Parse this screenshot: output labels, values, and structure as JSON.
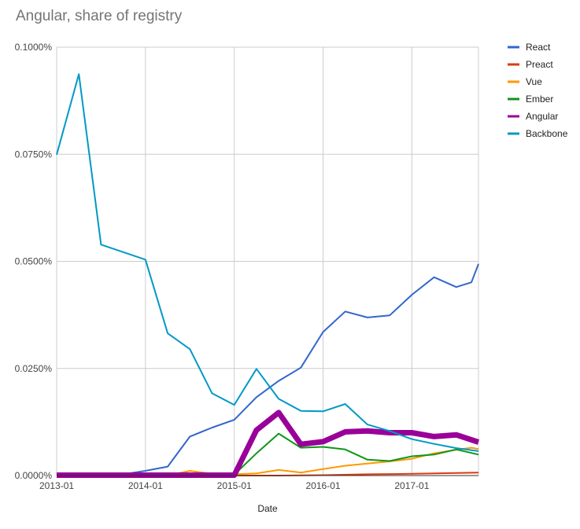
{
  "chart_data": {
    "type": "line",
    "title": "Angular, share of registry",
    "xlabel": "Date",
    "ylabel": "",
    "ylim": [
      0,
      0.1
    ],
    "xlim": [
      2013.0,
      2017.75
    ],
    "grid": true,
    "legend_position": "right",
    "y_ticks": [
      {
        "value": 0,
        "label": "0.0000%"
      },
      {
        "value": 0.025,
        "label": "0.0250%"
      },
      {
        "value": 0.05,
        "label": "0.0500%"
      },
      {
        "value": 0.075,
        "label": "0.0750%"
      },
      {
        "value": 0.1,
        "label": "0.1000%"
      }
    ],
    "x_ticks": [
      {
        "value": 2013.0,
        "label": "2013-01"
      },
      {
        "value": 2014.0,
        "label": "2014-01"
      },
      {
        "value": 2015.0,
        "label": "2015-01"
      },
      {
        "value": 2016.0,
        "label": "2016-01"
      },
      {
        "value": 2017.0,
        "label": "2017-01"
      }
    ],
    "series": [
      {
        "name": "React",
        "color": "#3366cc",
        "width": 2,
        "x": [
          2013.0,
          2013.75,
          2014.0,
          2014.25,
          2014.5,
          2014.75,
          2015.0,
          2015.25,
          2015.5,
          2015.75,
          2016.0,
          2016.25,
          2016.5,
          2016.75,
          2017.0,
          2017.25,
          2017.5,
          2017.67,
          2017.75
        ],
        "y": [
          0.0001,
          0.0003,
          0.0011,
          0.0021,
          0.0091,
          0.0112,
          0.013,
          0.0183,
          0.0221,
          0.0252,
          0.0335,
          0.0383,
          0.0369,
          0.0374,
          0.0422,
          0.0463,
          0.044,
          0.0451,
          0.0494
        ]
      },
      {
        "name": "Preact",
        "color": "#dc3912",
        "width": 2,
        "x": [
          2013.0,
          2015.0,
          2015.5,
          2016.0,
          2016.5,
          2017.0,
          2017.5,
          2017.75
        ],
        "y": [
          0.0,
          0.0,
          0.0,
          0.0001,
          0.0003,
          0.0004,
          0.0006,
          0.0007
        ]
      },
      {
        "name": "Vue",
        "color": "#ff9900",
        "width": 2,
        "x": [
          2013.0,
          2014.25,
          2014.5,
          2014.75,
          2015.0,
          2015.25,
          2015.5,
          2015.75,
          2016.0,
          2016.25,
          2016.5,
          2016.75,
          2017.0,
          2017.25,
          2017.5,
          2017.67,
          2017.75
        ],
        "y": [
          0.0,
          0.0,
          0.0011,
          0.0004,
          0.0003,
          0.0005,
          0.0013,
          0.0007,
          0.0015,
          0.0023,
          0.0028,
          0.0033,
          0.0039,
          0.0052,
          0.006,
          0.0065,
          0.0062
        ]
      },
      {
        "name": "Ember",
        "color": "#109618",
        "width": 2,
        "x": [
          2013.0,
          2014.75,
          2015.0,
          2015.25,
          2015.5,
          2015.75,
          2016.0,
          2016.25,
          2016.5,
          2016.75,
          2017.0,
          2017.25,
          2017.5,
          2017.75
        ],
        "y": [
          0.0,
          0.0,
          0.0002,
          0.0052,
          0.0098,
          0.0065,
          0.0067,
          0.0061,
          0.0037,
          0.0034,
          0.0045,
          0.0049,
          0.0061,
          0.0049
        ]
      },
      {
        "name": "Angular",
        "color": "#990099",
        "width": 7,
        "x": [
          2013.0,
          2014.75,
          2015.0,
          2015.25,
          2015.5,
          2015.75,
          2016.0,
          2016.25,
          2016.5,
          2016.75,
          2017.0,
          2017.25,
          2017.5,
          2017.75
        ],
        "y": [
          0.0001,
          0.0001,
          0.0001,
          0.0106,
          0.0147,
          0.0073,
          0.0079,
          0.0102,
          0.0104,
          0.01,
          0.01,
          0.0091,
          0.0095,
          0.0078
        ]
      },
      {
        "name": "Backbone",
        "color": "#0099c6",
        "width": 2,
        "x": [
          2013.0,
          2013.25,
          2013.5,
          2014.0,
          2014.25,
          2014.5,
          2014.75,
          2015.0,
          2015.25,
          2015.5,
          2015.75,
          2016.0,
          2016.25,
          2016.5,
          2016.75,
          2017.0,
          2017.25,
          2017.5,
          2017.75
        ],
        "y": [
          0.0749,
          0.0937,
          0.0539,
          0.0504,
          0.0332,
          0.0295,
          0.0192,
          0.0165,
          0.0249,
          0.0179,
          0.0151,
          0.015,
          0.0167,
          0.0119,
          0.0104,
          0.0085,
          0.0074,
          0.0064,
          0.0057
        ]
      }
    ]
  }
}
